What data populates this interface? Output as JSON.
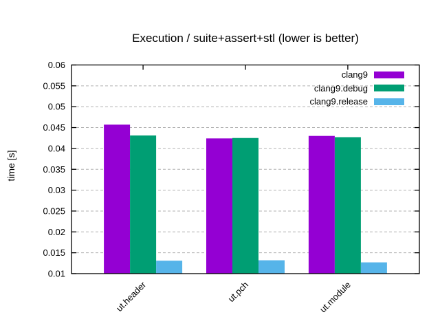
{
  "window": {
    "background": "#ffffff"
  },
  "chart_data": {
    "type": "bar",
    "title": "Execution / suite+assert+stl (lower is better)",
    "xlabel": "",
    "ylabel": "time [s]",
    "categories": [
      "ut.header",
      "ut.pch",
      "ut.module"
    ],
    "series": [
      {
        "name": "clang9",
        "color": "#9400d3",
        "values": [
          0.0457,
          0.0424,
          0.043
        ]
      },
      {
        "name": "clang9.debug",
        "color": "#009e73",
        "values": [
          0.0431,
          0.0425,
          0.0427
        ]
      },
      {
        "name": "clang9.release",
        "color": "#56b4e9",
        "values": [
          0.0131,
          0.0132,
          0.0127
        ]
      }
    ],
    "ylim": [
      0.01,
      0.06
    ],
    "ytick_step": 0.005,
    "ytick_labels": [
      "0.01",
      "0.015",
      "0.02",
      "0.025",
      "0.03",
      "0.035",
      "0.04",
      "0.045",
      "0.05",
      "0.055",
      "0.06"
    ],
    "grid": "horizontal-dashed",
    "legend_position": "top-right-inside",
    "colors": {
      "frame": "#000000",
      "grid": "#b0b0b0",
      "text": "#000000"
    }
  }
}
